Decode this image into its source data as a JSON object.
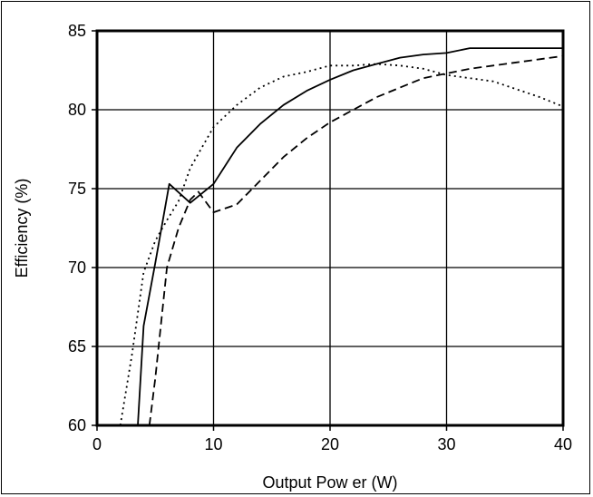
{
  "chart_data": {
    "type": "line",
    "title": "",
    "xlabel": "Output Pow er (W)",
    "ylabel": "Efficiency (%)",
    "xlim": [
      0,
      40
    ],
    "ylim": [
      60,
      85
    ],
    "x_ticks": [
      0,
      10,
      20,
      30,
      40
    ],
    "y_ticks": [
      60,
      65,
      70,
      75,
      80,
      85
    ],
    "grid": true,
    "legend": "none",
    "series": [
      {
        "style": "solid",
        "color": "#000000",
        "points": [
          [
            3.5,
            60
          ],
          [
            4,
            66.3
          ],
          [
            5,
            70.3
          ],
          [
            6.2,
            75.3
          ],
          [
            8,
            74.1
          ],
          [
            10,
            75.3
          ],
          [
            12,
            77.6
          ],
          [
            14,
            79.1
          ],
          [
            16,
            80.3
          ],
          [
            18,
            81.2
          ],
          [
            20,
            81.9
          ],
          [
            22,
            82.5
          ],
          [
            24,
            82.9
          ],
          [
            26,
            83.3
          ],
          [
            28,
            83.5
          ],
          [
            30,
            83.6
          ],
          [
            32,
            83.9
          ],
          [
            40,
            83.9
          ]
        ]
      },
      {
        "style": "dashed",
        "color": "#000000",
        "points": [
          [
            4.5,
            60
          ],
          [
            5,
            63
          ],
          [
            6,
            70
          ],
          [
            7,
            72.5
          ],
          [
            8,
            74.3
          ],
          [
            8.7,
            74.8
          ],
          [
            10,
            73.5
          ],
          [
            12,
            74
          ],
          [
            14,
            75.5
          ],
          [
            16,
            77
          ],
          [
            18,
            78.2
          ],
          [
            20,
            79.2
          ],
          [
            22,
            80
          ],
          [
            24,
            80.8
          ],
          [
            26,
            81.4
          ],
          [
            28,
            82
          ],
          [
            30,
            82.3
          ],
          [
            32,
            82.6
          ],
          [
            34,
            82.8
          ],
          [
            36,
            83
          ],
          [
            38,
            83.2
          ],
          [
            40,
            83.4
          ]
        ]
      },
      {
        "style": "dotted",
        "color": "#000000",
        "points": [
          [
            2,
            60
          ],
          [
            3,
            64.5
          ],
          [
            4,
            69.7
          ],
          [
            5,
            71.7
          ],
          [
            6,
            73
          ],
          [
            7,
            74.2
          ],
          [
            8,
            76.3
          ],
          [
            10,
            78.9
          ],
          [
            12,
            80.3
          ],
          [
            14,
            81.4
          ],
          [
            16,
            82.1
          ],
          [
            18,
            82.4
          ],
          [
            20,
            82.8
          ],
          [
            22,
            82.8
          ],
          [
            24,
            82.9
          ],
          [
            26,
            82.8
          ],
          [
            28,
            82.6
          ],
          [
            30,
            82.2
          ],
          [
            32,
            82
          ],
          [
            34,
            81.8
          ],
          [
            36,
            81.3
          ],
          [
            38,
            80.8
          ],
          [
            40,
            80.2
          ]
        ]
      }
    ]
  }
}
